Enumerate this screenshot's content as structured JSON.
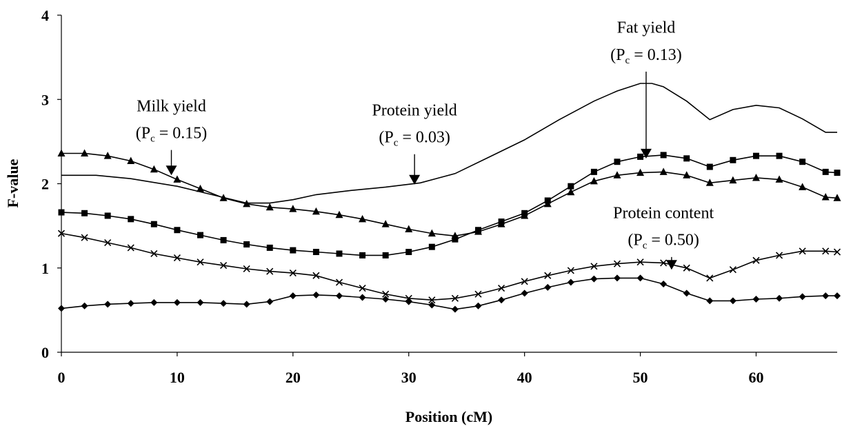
{
  "chart_data": {
    "type": "line",
    "xlabel": "Position (cM)",
    "ylabel": "F-value",
    "xlim": [
      0,
      67
    ],
    "ylim": [
      0,
      4
    ],
    "xticks": [
      "0",
      "10",
      "20",
      "30",
      "40",
      "50",
      "60"
    ],
    "yticks": [
      "0",
      "1",
      "2",
      "3",
      "4"
    ],
    "grid": false,
    "legend": "none",
    "series": [
      {
        "marker": "none",
        "x": [
          0,
          3,
          6,
          10,
          13,
          16,
          18,
          20,
          22,
          25,
          28,
          31,
          34,
          37,
          40,
          43,
          46,
          48,
          50,
          51,
          52,
          54,
          56,
          58,
          60,
          62,
          64,
          66,
          67
        ],
        "y": [
          2.1,
          2.1,
          2.06,
          1.97,
          1.87,
          1.77,
          1.77,
          1.81,
          1.87,
          1.92,
          1.96,
          2.01,
          2.12,
          2.32,
          2.52,
          2.76,
          2.98,
          3.1,
          3.19,
          3.19,
          3.15,
          2.98,
          2.76,
          2.88,
          2.93,
          2.9,
          2.77,
          2.61,
          2.61
        ]
      },
      {
        "marker": "square",
        "x": [
          0,
          2,
          4,
          6,
          8,
          10,
          12,
          14,
          16,
          18,
          20,
          22,
          24,
          26,
          28,
          30,
          32,
          34,
          36,
          38,
          40,
          42,
          44,
          46,
          48,
          50,
          52,
          54,
          56,
          58,
          60,
          62,
          64,
          66,
          67
        ],
        "y": [
          1.66,
          1.65,
          1.62,
          1.58,
          1.52,
          1.45,
          1.39,
          1.33,
          1.28,
          1.24,
          1.21,
          1.19,
          1.17,
          1.15,
          1.15,
          1.19,
          1.25,
          1.34,
          1.45,
          1.55,
          1.65,
          1.8,
          1.97,
          2.14,
          2.26,
          2.32,
          2.34,
          2.3,
          2.2,
          2.28,
          2.33,
          2.33,
          2.26,
          2.14,
          2.13
        ]
      },
      {
        "marker": "triangle",
        "x": [
          0,
          2,
          4,
          6,
          8,
          10,
          12,
          14,
          16,
          18,
          20,
          22,
          24,
          26,
          28,
          30,
          32,
          34,
          36,
          38,
          40,
          42,
          44,
          46,
          48,
          50,
          52,
          54,
          56,
          58,
          60,
          62,
          64,
          66,
          67
        ],
        "y": [
          2.36,
          2.36,
          2.33,
          2.27,
          2.17,
          2.05,
          1.94,
          1.83,
          1.76,
          1.72,
          1.7,
          1.67,
          1.63,
          1.58,
          1.52,
          1.46,
          1.41,
          1.38,
          1.43,
          1.52,
          1.62,
          1.76,
          1.9,
          2.03,
          2.1,
          2.13,
          2.14,
          2.1,
          2.01,
          2.04,
          2.07,
          2.05,
          1.96,
          1.84,
          1.83
        ]
      },
      {
        "marker": "x",
        "x": [
          0,
          2,
          4,
          6,
          8,
          10,
          12,
          14,
          16,
          18,
          20,
          22,
          24,
          26,
          28,
          30,
          32,
          34,
          36,
          38,
          40,
          42,
          44,
          46,
          48,
          50,
          52,
          54,
          56,
          58,
          60,
          62,
          64,
          66,
          67
        ],
        "y": [
          1.41,
          1.36,
          1.3,
          1.24,
          1.17,
          1.12,
          1.07,
          1.03,
          0.99,
          0.96,
          0.94,
          0.91,
          0.83,
          0.76,
          0.69,
          0.64,
          0.62,
          0.64,
          0.69,
          0.76,
          0.84,
          0.91,
          0.97,
          1.02,
          1.05,
          1.07,
          1.06,
          1.0,
          0.88,
          0.98,
          1.09,
          1.15,
          1.2,
          1.2,
          1.19
        ]
      },
      {
        "marker": "diamond",
        "x": [
          0,
          2,
          4,
          6,
          8,
          10,
          12,
          14,
          16,
          18,
          20,
          22,
          24,
          26,
          28,
          30,
          32,
          34,
          36,
          38,
          40,
          42,
          44,
          46,
          48,
          50,
          52,
          54,
          56,
          58,
          60,
          62,
          64,
          66,
          67
        ],
        "y": [
          0.52,
          0.55,
          0.57,
          0.58,
          0.59,
          0.59,
          0.59,
          0.58,
          0.57,
          0.6,
          0.67,
          0.68,
          0.67,
          0.65,
          0.63,
          0.6,
          0.56,
          0.51,
          0.55,
          0.62,
          0.7,
          0.77,
          0.83,
          0.87,
          0.88,
          0.88,
          0.81,
          0.7,
          0.61,
          0.61,
          0.63,
          0.64,
          0.66,
          0.67,
          0.67
        ]
      }
    ],
    "annotations": [
      {
        "line1": "Milk yield",
        "pre": "(P",
        "sub": "c",
        "post": " = 0.15)",
        "text_x": 9.5,
        "text_y1": 2.86,
        "text_y2": 2.54,
        "arrow_from": [
          9.5,
          2.4
        ],
        "arrow_to": [
          9.5,
          2.1
        ]
      },
      {
        "line1": "Protein yield",
        "pre": "(P",
        "sub": "c",
        "post": " = 0.03)",
        "text_x": 30.5,
        "text_y1": 2.81,
        "text_y2": 2.49,
        "arrow_from": [
          30.5,
          2.35
        ],
        "arrow_to": [
          30.5,
          1.99
        ]
      },
      {
        "line1": "Fat yield",
        "pre": "(P",
        "sub": "c",
        "post": " = 0.13)",
        "text_x": 50.5,
        "text_y1": 3.79,
        "text_y2": 3.47,
        "arrow_from": [
          50.5,
          3.33
        ],
        "arrow_to": [
          50.5,
          2.3
        ]
      },
      {
        "line1": "Protein content",
        "pre": "(P",
        "sub": "c",
        "post": "  = 0.50)",
        "text_x": 52,
        "text_y1": 1.59,
        "text_y2": 1.27,
        "arrow_from": [
          52.7,
          1.13
        ],
        "arrow_to": [
          52.7,
          0.98
        ]
      }
    ]
  }
}
